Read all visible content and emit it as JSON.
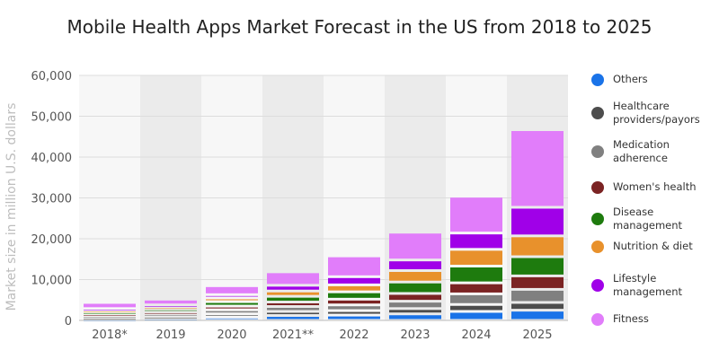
{
  "chart_data": {
    "type": "bar",
    "stacked": true,
    "title": "Mobile Health Apps Market Forecast in the US from 2018 to 2025",
    "ylabel": "Market size in million U.S. dollars",
    "xlabel": "",
    "ylim": [
      0,
      60000
    ],
    "yticks": [
      "0",
      "10,000",
      "20,000",
      "30,000",
      "40,000",
      "50,000",
      "60,000"
    ],
    "categories": [
      "2018*",
      "2019",
      "2020",
      "2021**",
      "2022",
      "2023",
      "2024",
      "2025"
    ],
    "grid": true,
    "legend_position": "right",
    "series": [
      {
        "name": "Others",
        "color": "#1a73e8",
        "values": [
          300,
          500,
          800,
          1200,
          1300,
          1600,
          2200,
          2500
        ]
      },
      {
        "name": "Healthcare providers/payors",
        "color": "#4d4d4d",
        "values": [
          400,
          500,
          800,
          1000,
          1100,
          1300,
          1700,
          1900
        ]
      },
      {
        "name": "Medication adherence",
        "color": "#808080",
        "values": [
          500,
          600,
          1000,
          1200,
          1400,
          1800,
          2600,
          3200
        ]
      },
      {
        "name": "Women's health",
        "color": "#7b2323",
        "values": [
          400,
          500,
          900,
          1100,
          1400,
          1900,
          2700,
          3300
        ]
      },
      {
        "name": "Disease management",
        "color": "#1e7b0e",
        "values": [
          500,
          700,
          1100,
          1400,
          1800,
          2800,
          4100,
          4700
        ]
      },
      {
        "name": "Nutrition & diet",
        "color": "#e8912c",
        "values": [
          400,
          500,
          900,
          1300,
          1700,
          2800,
          4100,
          5100
        ]
      },
      {
        "name": "Lifestyle management",
        "color": "#a000e8",
        "values": [
          400,
          500,
          800,
          1400,
          2000,
          2600,
          4000,
          7000
        ]
      },
      {
        "name": "Fitness",
        "color": "#e17dfa",
        "values": [
          1500,
          1400,
          2200,
          3300,
          5100,
          6800,
          9000,
          19000
        ]
      }
    ]
  }
}
